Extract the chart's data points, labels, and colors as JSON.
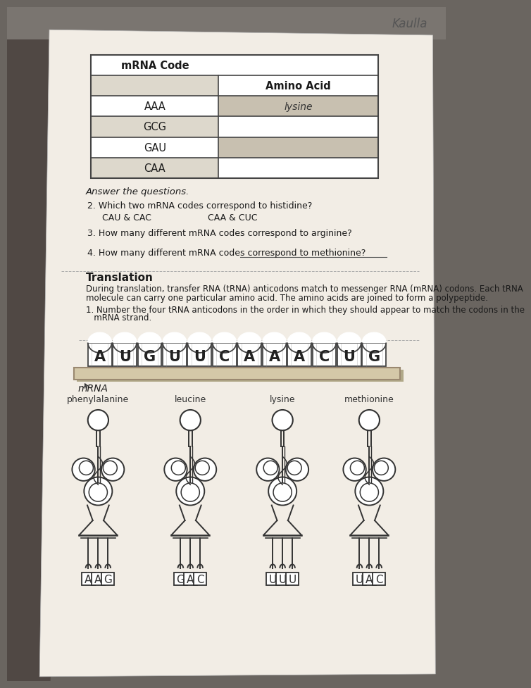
{
  "bg_left_color": "#5a5550",
  "bg_right_color": "#9a9590",
  "paper_color": "#f2ede5",
  "paper_shadow": "#c8c0b0",
  "title_handwritten": "Kaulla",
  "table_header_col1": "mRNA Code",
  "table_header_col2": "Amino Acid",
  "table_rows": [
    [
      "AAA",
      "lysine"
    ],
    [
      "GCG",
      ""
    ],
    [
      "GAU",
      ""
    ],
    [
      "CAA",
      ""
    ]
  ],
  "section_answer": "Answer the questions.",
  "q2_text": "2. Which two mRNA codes correspond to histidine?",
  "q2_opt1": "CAU & CAC",
  "q2_opt2": "CAA & CUC",
  "q3_text": "3. How many different mRNA codes correspond to arginine?",
  "q4_text": "4. How many different mRNA codes correspond to methionine?",
  "section_translation": "Translation",
  "translation_para1": "During translation, transfer RNA (tRNA) anticodons match to messenger RNA (mRNA) codons. Each tRNA",
  "translation_para2": "molecule can carry one particular amino acid. The amino acids are joined to form a polypeptide.",
  "q1_line1": "1. Number the four tRNA anticodons in the order in which they should appear to match the codons in the",
  "q1_line2": "   mRNA strand.",
  "mrna_letters": [
    "A",
    "U",
    "G",
    "U",
    "U",
    "C",
    "A",
    "A",
    "A",
    "C",
    "U",
    "G"
  ],
  "mrna_label": "mRNA",
  "amino_acids": [
    "phenylalanine",
    "leucine",
    "lysine",
    "methionine"
  ],
  "trna_codons": [
    [
      "A",
      "A",
      "G"
    ],
    [
      "G",
      "A",
      "C"
    ],
    [
      "U",
      "U",
      "U"
    ],
    [
      "U",
      "A",
      "C"
    ]
  ],
  "line_color": "#333333",
  "text_color": "#1a1a1a",
  "table_shade1": "#ddd8cc",
  "table_shade2": "#c8c0b0",
  "mrna_platform_color": "#d4c8a8",
  "mrna_platform_edge": "#9a8870"
}
